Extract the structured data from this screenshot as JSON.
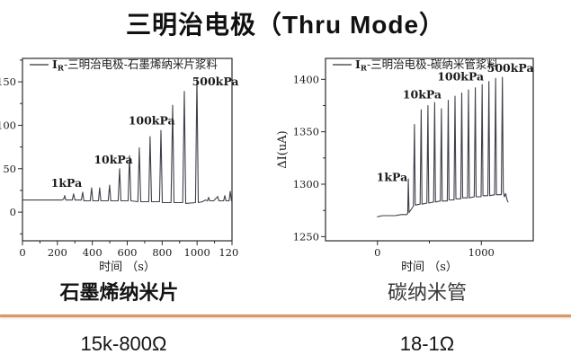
{
  "title": "三明治电极（Thru Mode）",
  "colors": {
    "line": "#3f3f4a",
    "annotation": "#4646c4",
    "axis": "#2a2a2a",
    "divider": "#d5996a",
    "title": "#111111"
  },
  "footer": {
    "materials": [
      {
        "label": "石墨烯纳米片"
      },
      {
        "label": "碳纳米管"
      }
    ],
    "resistances": [
      {
        "value": "15k-800Ω"
      },
      {
        "value": "18-1Ω"
      }
    ]
  },
  "chart_data": [
    {
      "type": "line",
      "name": "graphene-nanosheet-response",
      "legend": {
        "prefix": "I",
        "sub": "R",
        "rest": "-三明治电极-石墨烯纳米片浆料"
      },
      "xlabel": "时间 （s）",
      "ylabel": "",
      "xlim": [
        0,
        1200
      ],
      "ylim": [
        -33,
        177
      ],
      "xticks_major": [
        0,
        200,
        400,
        600,
        800,
        1000,
        1200
      ],
      "xticks_minor": [
        100,
        300,
        500,
        700,
        900,
        1100
      ],
      "yticks_major": [
        0,
        50,
        100,
        150
      ],
      "yticks_minor": [
        -25,
        25,
        75,
        125,
        175
      ],
      "grid": false,
      "pressure_steps_kPa": [
        1,
        10,
        100,
        500
      ],
      "baseline": 14,
      "peaks": [
        [
          242,
          19
        ],
        [
          293,
          21
        ],
        [
          345,
          23
        ],
        [
          396,
          28
        ],
        [
          442,
          28
        ],
        [
          499,
          31
        ],
        [
          556,
          50
        ],
        [
          613,
          65
        ],
        [
          669,
          74
        ],
        [
          731,
          87
        ],
        [
          793,
          94
        ],
        [
          860,
          123
        ],
        [
          927,
          139
        ],
        [
          999,
          154
        ],
        [
          1066,
          17
        ],
        [
          1118,
          18
        ],
        [
          1159,
          19
        ],
        [
          1190,
          24
        ]
      ],
      "annotations": [
        {
          "text": "1kPa",
          "t": 252,
          "v": 29
        },
        {
          "text": "10kPa",
          "t": 520,
          "v": 56
        },
        {
          "text": "100kPa",
          "t": 740,
          "v": 101
        },
        {
          "text": "500kPa",
          "t": 1105,
          "v": 146
        }
      ],
      "points": [
        [
          0,
          14
        ],
        [
          60,
          14
        ],
        [
          120,
          14
        ],
        [
          180,
          14
        ],
        [
          225,
          14
        ],
        [
          236,
          15
        ],
        [
          242,
          19
        ],
        [
          248,
          14
        ],
        [
          285,
          14
        ],
        [
          293,
          21
        ],
        [
          300,
          14
        ],
        [
          337,
          14
        ],
        [
          345,
          23
        ],
        [
          352,
          13
        ],
        [
          388,
          13
        ],
        [
          396,
          28
        ],
        [
          403,
          13
        ],
        [
          435,
          13
        ],
        [
          442,
          28
        ],
        [
          449,
          13
        ],
        [
          491,
          13
        ],
        [
          499,
          31
        ],
        [
          506,
          13
        ],
        [
          548,
          13
        ],
        [
          556,
          50
        ],
        [
          564,
          13
        ],
        [
          605,
          13
        ],
        [
          613,
          65
        ],
        [
          621,
          13
        ],
        [
          661,
          12
        ],
        [
          669,
          74
        ],
        [
          677,
          12
        ],
        [
          723,
          12
        ],
        [
          731,
          87
        ],
        [
          739,
          12
        ],
        [
          785,
          12
        ],
        [
          793,
          94
        ],
        [
          801,
          11
        ],
        [
          851,
          11
        ],
        [
          860,
          123
        ],
        [
          868,
          11
        ],
        [
          918,
          11
        ],
        [
          927,
          139
        ],
        [
          935,
          10
        ],
        [
          991,
          11
        ],
        [
          999,
          154
        ],
        [
          1007,
          11
        ],
        [
          1030,
          12
        ],
        [
          1048,
          14
        ],
        [
          1060,
          13
        ],
        [
          1066,
          17
        ],
        [
          1073,
          13
        ],
        [
          1095,
          13
        ],
        [
          1118,
          18
        ],
        [
          1125,
          13
        ],
        [
          1152,
          13
        ],
        [
          1159,
          19
        ],
        [
          1166,
          13
        ],
        [
          1183,
          13
        ],
        [
          1190,
          24
        ],
        [
          1197,
          13
        ],
        [
          1200,
          14
        ]
      ]
    },
    {
      "type": "line",
      "name": "carbon-nanotube-response",
      "legend": {
        "prefix": "I",
        "sub": "R",
        "rest": "-三明治电极-碳纳米管浆料"
      },
      "xlabel": "时间 （s）",
      "ylabel": "ΔI(uA)",
      "xlim": [
        -500,
        1500
      ],
      "ylim": [
        1246,
        1420
      ],
      "xticks_major": [
        0,
        1000
      ],
      "xticks_minor": [
        500
      ],
      "yticks_major": [
        1250,
        1300,
        1350,
        1400
      ],
      "yticks_minor": [
        1275,
        1325,
        1375
      ],
      "grid": false,
      "pressure_steps_kPa": [
        1,
        10,
        100,
        500
      ],
      "baseline": 1270,
      "peaks": [
        [
          297,
          1305
        ],
        [
          356,
          1357
        ],
        [
          421,
          1371
        ],
        [
          486,
          1375
        ],
        [
          551,
          1378
        ],
        [
          616,
          1372
        ],
        [
          682,
          1380
        ],
        [
          747,
          1384
        ],
        [
          812,
          1387
        ],
        [
          877,
          1390
        ],
        [
          942,
          1392
        ],
        [
          1008,
          1395
        ],
        [
          1073,
          1398
        ],
        [
          1138,
          1401
        ],
        [
          1203,
          1402
        ]
      ],
      "annotations": [
        {
          "text": "1kPa",
          "t": 140,
          "v": 1303
        },
        {
          "text": "10kPa",
          "t": 430,
          "v": 1382
        },
        {
          "text": "100kPa",
          "t": 800,
          "v": 1399
        },
        {
          "text": "500kPa",
          "t": 1280,
          "v": 1407
        }
      ],
      "points": [
        [
          0,
          1269
        ],
        [
          50,
          1270
        ],
        [
          110,
          1270
        ],
        [
          170,
          1270
        ],
        [
          230,
          1271
        ],
        [
          283,
          1271
        ],
        [
          291,
          1272
        ],
        [
          297,
          1305
        ],
        [
          304,
          1273
        ],
        [
          346,
          1279
        ],
        [
          356,
          1357
        ],
        [
          364,
          1280
        ],
        [
          411,
          1281
        ],
        [
          421,
          1371
        ],
        [
          429,
          1281
        ],
        [
          476,
          1282
        ],
        [
          486,
          1375
        ],
        [
          494,
          1282
        ],
        [
          541,
          1283
        ],
        [
          551,
          1378
        ],
        [
          559,
          1283
        ],
        [
          606,
          1284
        ],
        [
          616,
          1372
        ],
        [
          624,
          1284
        ],
        [
          672,
          1284
        ],
        [
          682,
          1380
        ],
        [
          690,
          1285
        ],
        [
          737,
          1285
        ],
        [
          747,
          1384
        ],
        [
          755,
          1286
        ],
        [
          802,
          1286
        ],
        [
          812,
          1387
        ],
        [
          820,
          1287
        ],
        [
          867,
          1287
        ],
        [
          877,
          1390
        ],
        [
          885,
          1287
        ],
        [
          932,
          1288
        ],
        [
          942,
          1392
        ],
        [
          950,
          1288
        ],
        [
          998,
          1288
        ],
        [
          1008,
          1395
        ],
        [
          1016,
          1289
        ],
        [
          1063,
          1289
        ],
        [
          1073,
          1398
        ],
        [
          1081,
          1289
        ],
        [
          1128,
          1290
        ],
        [
          1138,
          1401
        ],
        [
          1146,
          1290
        ],
        [
          1193,
          1290
        ],
        [
          1203,
          1402
        ],
        [
          1212,
          1293
        ],
        [
          1222,
          1288
        ],
        [
          1235,
          1291
        ],
        [
          1248,
          1285
        ],
        [
          1258,
          1283
        ]
      ]
    }
  ]
}
